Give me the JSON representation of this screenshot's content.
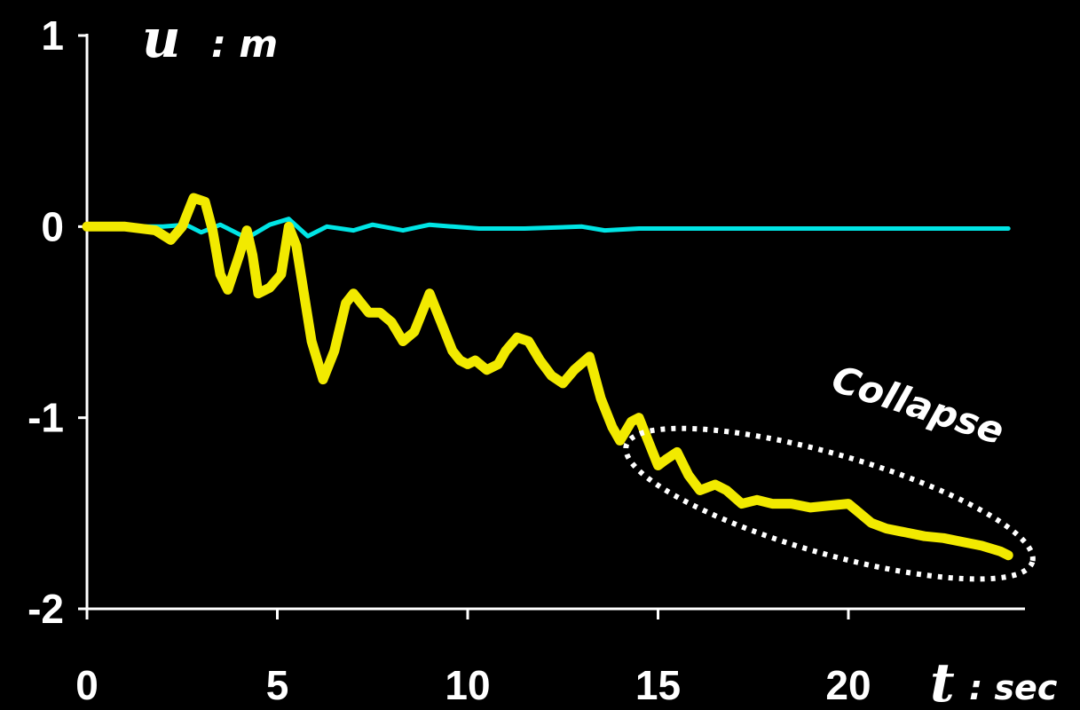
{
  "chart_data": {
    "type": "line",
    "ylabel": {
      "symbol": "u",
      "unit": ": m"
    },
    "xlabel": {
      "symbol": "t",
      "unit": ": sec"
    },
    "xlim": [
      0,
      24.5
    ],
    "ylim": [
      -2,
      1
    ],
    "x_ticks": [
      0,
      5,
      10,
      15,
      20
    ],
    "x_tick_labels": [
      "0",
      "5",
      "10",
      "15",
      "20"
    ],
    "y_ticks": [
      1,
      0,
      -1,
      -2
    ],
    "y_tick_labels": [
      "1",
      "0",
      "-1",
      "-2"
    ],
    "grid": false,
    "legend": "none",
    "annotation": {
      "text": "Collapse",
      "x_range": [
        14.3,
        24.7
      ],
      "y_range": [
        -1.85,
        -1.05
      ]
    },
    "series": [
      {
        "color": "#00e5e5",
        "points": [
          [
            0,
            0
          ],
          [
            1,
            0
          ],
          [
            2,
            0
          ],
          [
            2.6,
            0.01
          ],
          [
            3,
            -0.03
          ],
          [
            3.5,
            0.01
          ],
          [
            4.2,
            -0.06
          ],
          [
            4.8,
            0.01
          ],
          [
            5.3,
            0.04
          ],
          [
            5.8,
            -0.05
          ],
          [
            6.3,
            0
          ],
          [
            7,
            -0.02
          ],
          [
            7.5,
            0.01
          ],
          [
            8.3,
            -0.02
          ],
          [
            9,
            0.01
          ],
          [
            9.6,
            0
          ],
          [
            10.3,
            -0.01
          ],
          [
            11.5,
            -0.01
          ],
          [
            13,
            0
          ],
          [
            13.6,
            -0.02
          ],
          [
            14.5,
            -0.01
          ],
          [
            16,
            -0.01
          ],
          [
            18,
            -0.01
          ],
          [
            20,
            -0.01
          ],
          [
            22,
            -0.01
          ],
          [
            24.2,
            -0.01
          ]
        ]
      },
      {
        "color": "#f2ea00",
        "points": [
          [
            0,
            0
          ],
          [
            1,
            0
          ],
          [
            1.8,
            -0.02
          ],
          [
            2.2,
            -0.07
          ],
          [
            2.5,
            0
          ],
          [
            2.8,
            0.15
          ],
          [
            3.1,
            0.13
          ],
          [
            3.3,
            -0.02
          ],
          [
            3.5,
            -0.25
          ],
          [
            3.7,
            -0.33
          ],
          [
            4,
            -0.15
          ],
          [
            4.2,
            -0.02
          ],
          [
            4.35,
            -0.15
          ],
          [
            4.5,
            -0.35
          ],
          [
            4.8,
            -0.32
          ],
          [
            5.1,
            -0.25
          ],
          [
            5.3,
            0
          ],
          [
            5.5,
            -0.1
          ],
          [
            5.7,
            -0.35
          ],
          [
            5.9,
            -0.6
          ],
          [
            6.2,
            -0.8
          ],
          [
            6.5,
            -0.65
          ],
          [
            6.8,
            -0.4
          ],
          [
            7,
            -0.35
          ],
          [
            7.4,
            -0.45
          ],
          [
            7.7,
            -0.45
          ],
          [
            8,
            -0.5
          ],
          [
            8.3,
            -0.6
          ],
          [
            8.6,
            -0.55
          ],
          [
            8.9,
            -0.4
          ],
          [
            9,
            -0.35
          ],
          [
            9.3,
            -0.5
          ],
          [
            9.6,
            -0.65
          ],
          [
            9.8,
            -0.7
          ],
          [
            10,
            -0.72
          ],
          [
            10.2,
            -0.7
          ],
          [
            10.5,
            -0.75
          ],
          [
            10.8,
            -0.72
          ],
          [
            11,
            -0.65
          ],
          [
            11.3,
            -0.58
          ],
          [
            11.6,
            -0.6
          ],
          [
            11.9,
            -0.7
          ],
          [
            12.2,
            -0.78
          ],
          [
            12.5,
            -0.82
          ],
          [
            12.8,
            -0.75
          ],
          [
            13.2,
            -0.68
          ],
          [
            13.5,
            -0.9
          ],
          [
            13.8,
            -1.05
          ],
          [
            14,
            -1.12
          ],
          [
            14.3,
            -1.02
          ],
          [
            14.5,
            -1
          ],
          [
            14.8,
            -1.15
          ],
          [
            15,
            -1.25
          ],
          [
            15.2,
            -1.22
          ],
          [
            15.5,
            -1.18
          ],
          [
            15.8,
            -1.3
          ],
          [
            16.1,
            -1.38
          ],
          [
            16.5,
            -1.35
          ],
          [
            16.8,
            -1.38
          ],
          [
            17.2,
            -1.45
          ],
          [
            17.6,
            -1.43
          ],
          [
            18,
            -1.45
          ],
          [
            18.5,
            -1.45
          ],
          [
            19,
            -1.47
          ],
          [
            19.5,
            -1.46
          ],
          [
            20,
            -1.45
          ],
          [
            20.3,
            -1.5
          ],
          [
            20.6,
            -1.55
          ],
          [
            21,
            -1.58
          ],
          [
            21.5,
            -1.6
          ],
          [
            22,
            -1.62
          ],
          [
            22.5,
            -1.63
          ],
          [
            23,
            -1.65
          ],
          [
            23.5,
            -1.67
          ],
          [
            24,
            -1.7
          ],
          [
            24.2,
            -1.72
          ]
        ]
      }
    ]
  }
}
